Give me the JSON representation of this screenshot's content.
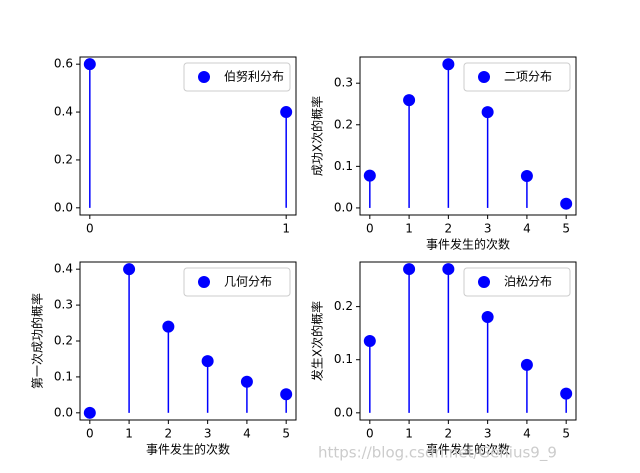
{
  "chart_data": [
    {
      "type": "stem",
      "x": [
        0,
        1
      ],
      "series": [
        {
          "name": "伯努利分布",
          "color": "blue",
          "values": [
            0.6,
            0.4
          ]
        }
      ],
      "xlim": [
        -0.05,
        1.05
      ],
      "ylim": [
        -0.03,
        0.63
      ],
      "xticks": [
        0,
        1
      ],
      "yticks": [
        {
          "value": 0,
          "label": "0.0"
        },
        {
          "value": 0.2,
          "label": "0.2"
        },
        {
          "value": 0.4,
          "label": "0.4"
        },
        {
          "value": 0.6,
          "label": "0.6"
        }
      ],
      "legend": "upper right"
    },
    {
      "type": "stem",
      "x": [
        0,
        1,
        2,
        3,
        4,
        5
      ],
      "series": [
        {
          "name": "二项分布",
          "color": "blue",
          "values": [
            0.0778,
            0.2592,
            0.3456,
            0.2304,
            0.0768,
            0.0102
          ]
        }
      ],
      "xlim": [
        -0.25,
        5.25
      ],
      "ylim": [
        -0.017,
        0.363
      ],
      "xticks": [
        0,
        1,
        2,
        3,
        4,
        5
      ],
      "yticks": [
        {
          "value": 0,
          "label": "0.0"
        },
        {
          "value": 0.1,
          "label": "0.1"
        },
        {
          "value": 0.2,
          "label": "0.2"
        },
        {
          "value": 0.3,
          "label": "0.3"
        }
      ],
      "x_label": "事件发生的次数",
      "y_label": "成功X次的概率",
      "legend": "upper right"
    },
    {
      "type": "stem",
      "x": [
        0,
        1,
        2,
        3,
        4,
        5
      ],
      "series": [
        {
          "name": "几何分布",
          "color": "blue",
          "values": [
            0,
            0.4,
            0.24,
            0.144,
            0.0864,
            0.0518
          ]
        }
      ],
      "xlim": [
        -0.25,
        5.25
      ],
      "ylim": [
        -0.02,
        0.42
      ],
      "xticks": [
        0,
        1,
        2,
        3,
        4,
        5
      ],
      "yticks": [
        {
          "value": 0,
          "label": "0.0"
        },
        {
          "value": 0.1,
          "label": "0.1"
        },
        {
          "value": 0.2,
          "label": "0.2"
        },
        {
          "value": 0.3,
          "label": "0.3"
        },
        {
          "value": 0.4,
          "label": "0.4"
        }
      ],
      "x_label": "事件发生的次数",
      "y_label": "第一次成功的概率",
      "legend": "upper right"
    },
    {
      "type": "stem",
      "x": [
        0,
        1,
        2,
        3,
        4,
        5
      ],
      "series": [
        {
          "name": "泊松分布",
          "color": "blue",
          "values": [
            0.1353,
            0.2707,
            0.2707,
            0.1804,
            0.0902,
            0.0361
          ]
        }
      ],
      "xlim": [
        -0.25,
        5.25
      ],
      "ylim": [
        -0.0135,
        0.284
      ],
      "xticks": [
        0,
        1,
        2,
        3,
        4,
        5
      ],
      "yticks": [
        {
          "value": 0,
          "label": "0.0"
        },
        {
          "value": 0.1,
          "label": "0.1"
        },
        {
          "value": 0.2,
          "label": "0.2"
        }
      ],
      "x_label": "事件发生的次数",
      "y_label": "发生X次的概率",
      "legend": "upper right"
    }
  ],
  "watermark": "https://blog.csdn.net/Genius9_9"
}
